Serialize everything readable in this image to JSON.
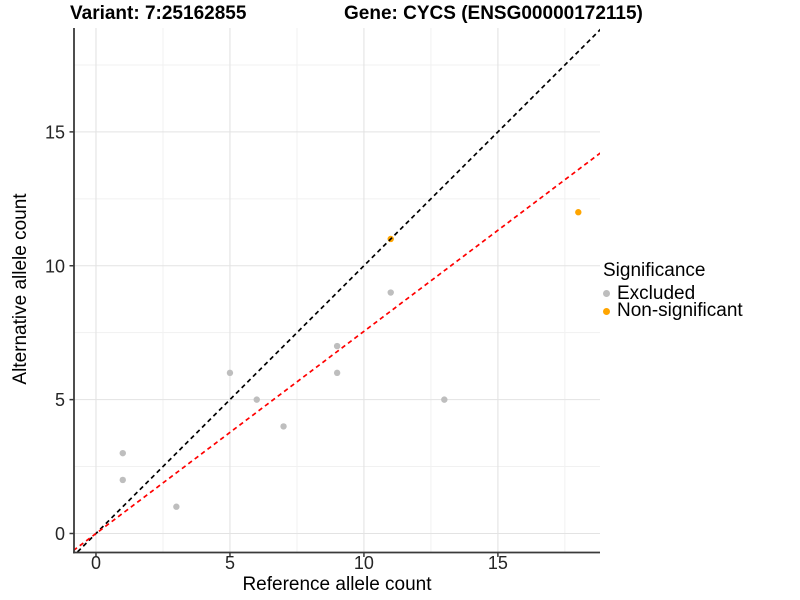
{
  "chart_data": {
    "type": "scatter",
    "title_left": "Variant: 7:25162855",
    "title_right": "Gene: CYCS (ENSG00000172115)",
    "xlabel": "Reference allele count",
    "ylabel": "Alternative allele count",
    "xlim": [
      -0.82,
      18.81
    ],
    "ylim": [
      -0.71,
      18.88
    ],
    "x_ticks": [
      0,
      5,
      10,
      15
    ],
    "y_ticks": [
      0,
      5,
      10,
      15
    ],
    "x_minor": [
      2.5,
      7.5,
      12.5,
      17.5
    ],
    "y_minor": [
      2.5,
      7.5,
      12.5,
      17.5
    ],
    "grid": "major-and-minor",
    "legend": {
      "title": "Significance",
      "position": "right",
      "items": [
        {
          "label": "Excluded",
          "color": "#BEBEBE"
        },
        {
          "label": "Non-significant",
          "color": "#FFA500"
        }
      ]
    },
    "series": [
      {
        "name": "Excluded",
        "color": "#BEBEBE",
        "points": [
          [
            1,
            3
          ],
          [
            1,
            2
          ],
          [
            3,
            1
          ],
          [
            5,
            6
          ],
          [
            6,
            5
          ],
          [
            7,
            4
          ],
          [
            9,
            7
          ],
          [
            9,
            6
          ],
          [
            11,
            9
          ],
          [
            13,
            5
          ]
        ]
      },
      {
        "name": "Non-significant",
        "color": "#FFA500",
        "points": [
          [
            11,
            11
          ],
          [
            18,
            12
          ]
        ]
      }
    ],
    "lines": [
      {
        "name": "identity-line",
        "slope": 1,
        "intercept": 0,
        "color": "#000000",
        "style": "dashed"
      },
      {
        "name": "fit-line",
        "slope": 0.755,
        "intercept": 0,
        "color": "#FF0000",
        "style": "dashed"
      }
    ],
    "colors": {
      "grid_major": "#E3E3E3",
      "grid_minor": "#F1F1F1",
      "axis": "#3A3A3A",
      "tick_text": "#262626",
      "background": "#FFFFFF"
    }
  }
}
